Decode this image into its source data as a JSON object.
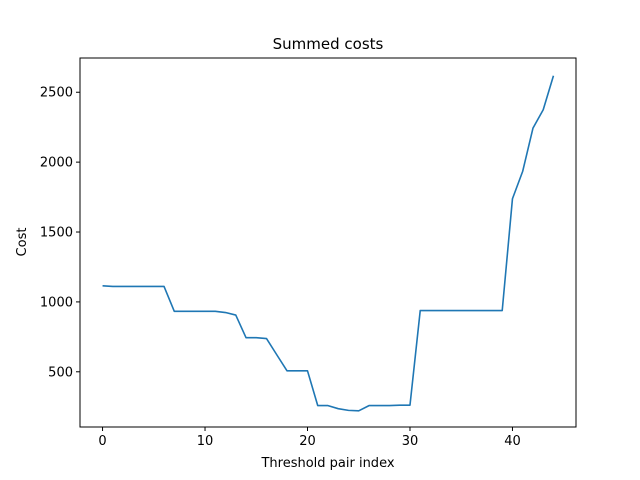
{
  "chart_data": {
    "type": "line",
    "title": "Summed costs",
    "xlabel": "Threshold pair index",
    "ylabel": "Cost",
    "xlim": [
      -2.2,
      46.2
    ],
    "ylim": [
      105,
      2745
    ],
    "xticks": [
      0,
      10,
      20,
      30,
      40
    ],
    "yticks": [
      500,
      1000,
      1500,
      2000,
      2500
    ],
    "grid": false,
    "series": [
      {
        "color": "#1f77b4",
        "x": [
          0,
          1,
          2,
          3,
          4,
          5,
          6,
          7,
          8,
          9,
          10,
          11,
          12,
          13,
          14,
          15,
          16,
          17,
          18,
          19,
          20,
          21,
          22,
          23,
          24,
          25,
          26,
          27,
          28,
          29,
          30,
          31,
          32,
          33,
          34,
          35,
          36,
          37,
          38,
          39,
          40,
          41,
          42,
          43,
          44
        ],
        "y": [
          1115,
          1111,
          1111,
          1111,
          1111,
          1111,
          1111,
          933,
          933,
          933,
          933,
          933,
          924,
          906,
          744,
          744,
          738,
          622,
          507,
          507,
          507,
          258,
          258,
          236,
          224,
          221,
          258,
          258,
          258,
          261,
          261,
          938,
          938,
          938,
          938,
          938,
          938,
          938,
          938,
          938,
          1738,
          1935,
          2243,
          2375,
          2618
        ]
      }
    ]
  }
}
